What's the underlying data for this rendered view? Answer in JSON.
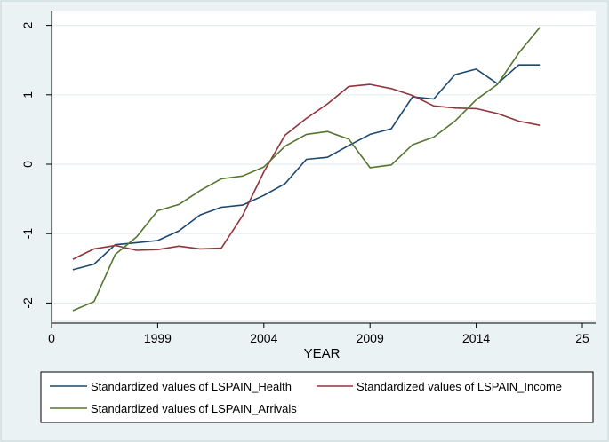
{
  "chart_data": {
    "type": "line",
    "xlabel": "YEAR",
    "ylabel": "",
    "xlim": [
      0,
      25
    ],
    "ylim": [
      -2.1,
      2.2
    ],
    "x_ticks": [
      {
        "value": 0,
        "label": "0"
      },
      {
        "value": 5,
        "label": "1999"
      },
      {
        "value": 10,
        "label": "2004"
      },
      {
        "value": 15,
        "label": "2009"
      },
      {
        "value": 20,
        "label": "2014"
      },
      {
        "value": 25,
        "label": "25"
      }
    ],
    "y_ticks": [
      {
        "value": -2,
        "label": "-2"
      },
      {
        "value": -1,
        "label": "-1"
      },
      {
        "value": 0,
        "label": "0"
      },
      {
        "value": 1,
        "label": "1"
      },
      {
        "value": 2,
        "label": "2"
      }
    ],
    "x": [
      1,
      2,
      3,
      4,
      5,
      6,
      7,
      8,
      9,
      10,
      11,
      12,
      13,
      14,
      15,
      16,
      17,
      18,
      19,
      20,
      21,
      22,
      23
    ],
    "series": [
      {
        "name": "Standardized values of LSPAIN_Health",
        "color": "#1a476f",
        "values": [
          -1.52,
          -1.44,
          -1.16,
          -1.13,
          -1.1,
          -0.96,
          -0.73,
          -0.62,
          -0.59,
          -0.45,
          -0.28,
          0.07,
          0.1,
          0.27,
          0.43,
          0.51,
          0.97,
          0.94,
          1.29,
          1.37,
          1.16,
          1.43,
          1.43
        ]
      },
      {
        "name": "Standardized values of LSPAIN_Income",
        "color": "#90353b",
        "values": [
          -1.37,
          -1.22,
          -1.17,
          -1.24,
          -1.23,
          -1.18,
          -1.22,
          -1.21,
          -0.74,
          -0.11,
          0.42,
          0.66,
          0.87,
          1.12,
          1.15,
          1.09,
          0.99,
          0.84,
          0.81,
          0.8,
          0.73,
          0.62,
          0.56
        ]
      },
      {
        "name": "Standardized values of LSPAIN_Arrivals",
        "color": "#55752f",
        "values": [
          -2.11,
          -1.98,
          -1.3,
          -1.05,
          -0.67,
          -0.58,
          -0.38,
          -0.21,
          -0.17,
          -0.04,
          0.26,
          0.43,
          0.47,
          0.36,
          -0.05,
          -0.01,
          0.28,
          0.39,
          0.62,
          0.93,
          1.15,
          1.6,
          1.97
        ]
      }
    ],
    "legend_position": "bottom"
  }
}
